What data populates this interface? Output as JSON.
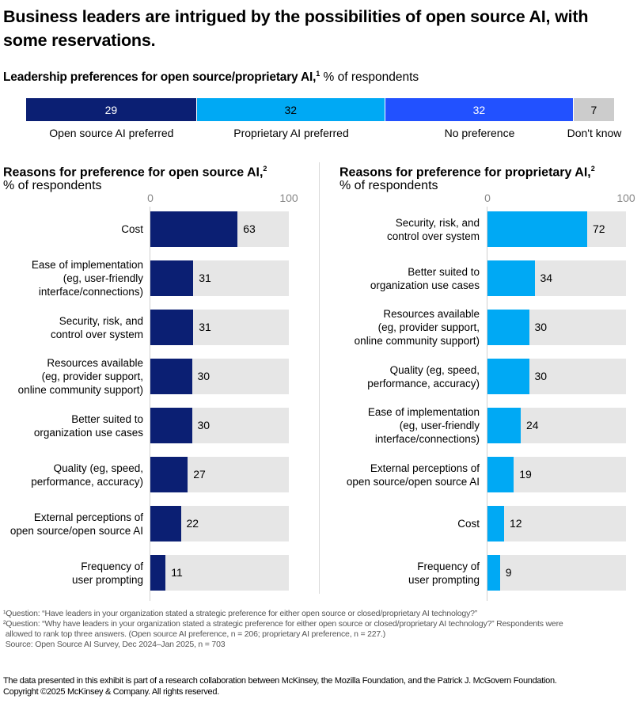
{
  "title": "Business leaders are intrigued by the possibilities of open source AI, with some reservations.",
  "subtitle": {
    "bold": "Leadership preferences for open source/proprietary AI,",
    "footnote_mark": "1",
    "unit": " % of respondents"
  },
  "colors": {
    "open_source": "#0b1f73",
    "proprietary": "#00a9f4",
    "no_preference": "#2251ff",
    "dont_know": "#cccccc",
    "bar_background": "#e6e6e6"
  },
  "chart_data": [
    {
      "type": "bar",
      "orientation": "horizontal-stacked",
      "title": "Leadership preferences for open source/proprietary AI",
      "unit": "% of respondents",
      "categories": [
        "Open source AI preferred",
        "Proprietary AI preferred",
        "No preference",
        "Don't know"
      ],
      "values": [
        29,
        32,
        32,
        7
      ],
      "colors": [
        "#0b1f73",
        "#00a9f4",
        "#2251ff",
        "#cccccc"
      ],
      "label_colors": [
        "#ffffff",
        "#000000",
        "#ffffff",
        "#000000"
      ]
    },
    {
      "type": "bar",
      "orientation": "horizontal",
      "title": "Reasons for preference for open source AI,",
      "footnote_mark": "2",
      "unit": "% of respondents",
      "xlim": [
        0,
        100
      ],
      "ticks": [
        "0",
        "100"
      ],
      "color": "#0b1f73",
      "categories": [
        "Cost",
        "Ease of implementation\n(eg, user-friendly\ninterface/connections)",
        "Security, risk, and\ncontrol over system",
        "Resources available\n(eg, provider support,\nonline community support)",
        "Better suited to\norganization use cases",
        "Quality (eg, speed,\nperformance, accuracy)",
        "External perceptions of\nopen source/open source AI",
        "Frequency of\nuser prompting"
      ],
      "values": [
        63,
        31,
        31,
        30,
        30,
        27,
        22,
        11
      ]
    },
    {
      "type": "bar",
      "orientation": "horizontal",
      "title": "Reasons for preference for proprietary AI,",
      "footnote_mark": "2",
      "unit": "% of respondents",
      "xlim": [
        0,
        100
      ],
      "ticks": [
        "0",
        "100"
      ],
      "color": "#00a9f4",
      "categories": [
        "Security, risk, and\ncontrol over system",
        "Better suited to\norganization use cases",
        "Resources available\n(eg, provider support,\nonline community support)",
        "Quality (eg, speed,\nperformance, accuracy)",
        "Ease of implementation\n(eg, user-friendly\ninterface/connections)",
        "External perceptions of\nopen source/open source AI",
        "Cost",
        "Frequency of\nuser prompting"
      ],
      "values": [
        72,
        34,
        30,
        30,
        24,
        19,
        12,
        9
      ]
    }
  ],
  "footnotes": [
    "¹Question: “Have leaders in your organization stated a strategic preference for either open source or closed/proprietary AI technology?”",
    "²Question: “Why have leaders in your organization stated a strategic preference for either open source or closed/proprietary AI technology?” Respondents were",
    " allowed to rank top three answers. (Open source AI preference, n = 206; proprietary AI preference, n = 227.)",
    " Source: Open Source AI Survey, Dec 2024–Jan 2025, n = 703"
  ],
  "credit": [
    "The data presented in this exhibit is part of a research collaboration between McKinsey, the Mozilla Foundation, and the Patrick J. McGovern Foundation.",
    "Copyright ©2025 McKinsey & Company. All rights reserved."
  ]
}
